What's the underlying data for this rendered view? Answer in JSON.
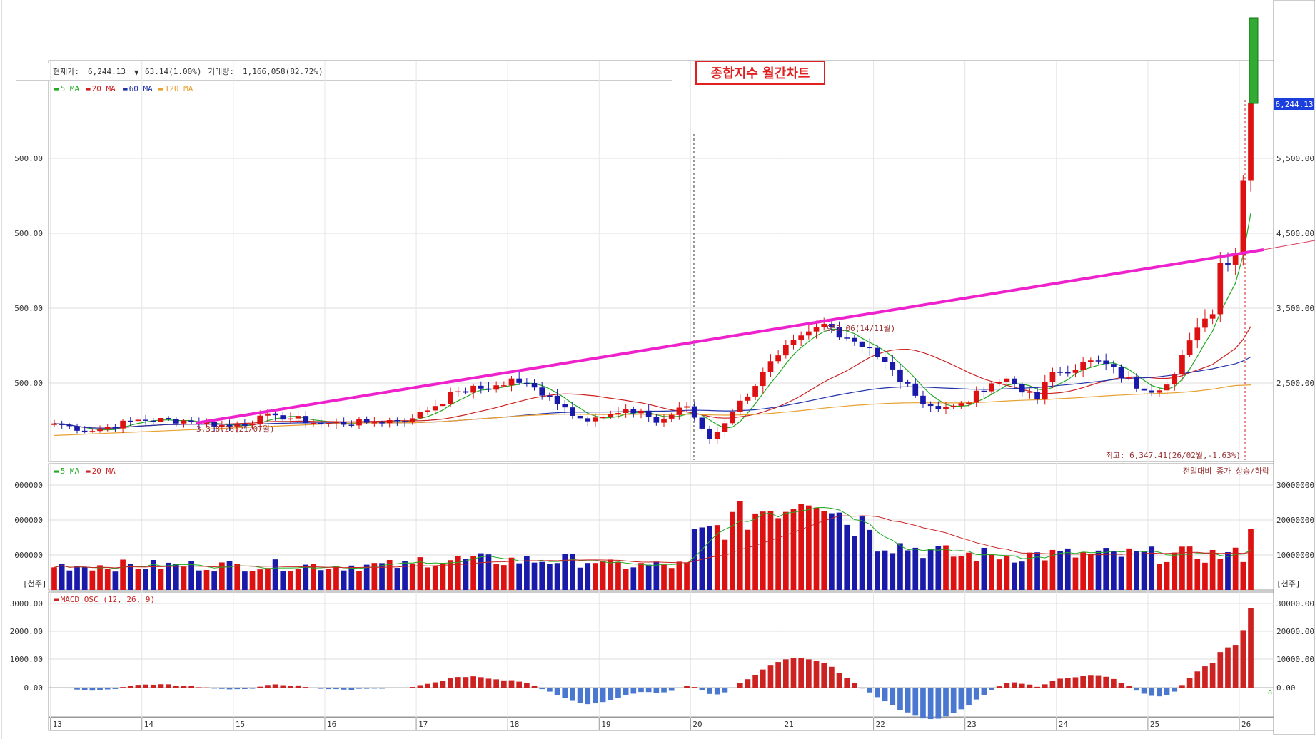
{
  "info_bar": {
    "price_label": "현재가:",
    "price": "6,244.13",
    "change": "63.14(1.00%)",
    "change_arrow": "▼",
    "volume_label": "거래량:",
    "volume": "1,166,058(82.72%)"
  },
  "title_box": {
    "text": "종합지수 월간차트",
    "color": "#e02020"
  },
  "price_panel": {
    "legend": [
      {
        "label": "5 MA",
        "color": "#22aa22"
      },
      {
        "label": "20 MA",
        "color": "#cc2222"
      },
      {
        "label": "60 MA",
        "color": "#2233aa"
      },
      {
        "label": "120 MA",
        "color": "#e8a030"
      }
    ],
    "left_ticks": [
      "500.00",
      "500.00",
      "500.00",
      "500.00"
    ],
    "right_ticks": [
      "5,500.00",
      "4,500.00",
      "3,500.00",
      "2,500.00"
    ],
    "current_price_tag": "6,244.13",
    "annotation_low": "3,318.26(21/07월)",
    "annotation_peak": "957.06(14/11월)",
    "annotation_high": "최고: 6,347.41(26/02월,-1.63%)"
  },
  "volume_panel": {
    "legend": [
      {
        "label": "5 MA",
        "color": "#22aa22"
      },
      {
        "label": "20 MA",
        "color": "#cc2222"
      }
    ],
    "right_caption": "전일대비 종가 상승/하락",
    "left_ticks": [
      "000000",
      "000000",
      "000000"
    ],
    "right_ticks": [
      "30000000",
      "20000000",
      "10000000"
    ],
    "unit_left": "[천주]",
    "unit_right": "[천주]"
  },
  "macd_panel": {
    "legend": {
      "label": "MACD OSC (12, 26, 9)",
      "color": "#cc2222"
    },
    "left_ticks": [
      "3000.00",
      "2000.00",
      "1000.00",
      "0.00"
    ],
    "right_ticks": [
      "30000.00",
      "20000.00",
      "10000.00",
      "0.00"
    ],
    "right_zero_marker": "0"
  },
  "x_axis": {
    "labels": [
      "13",
      "14",
      "15",
      "16",
      "17",
      "18",
      "19",
      "20",
      "21",
      "22",
      "23",
      "24",
      "25",
      "26"
    ]
  },
  "colors": {
    "up": "#dd1111",
    "down": "#1a1aaa",
    "trendline": "#ee22cc",
    "macd_neg": "#4a78d0",
    "macd_pos": "#cc2222"
  },
  "chart_data": {
    "type": "candlestick",
    "title": "종합지수 월간차트",
    "x_axis": "year (20xx, monthly bars)",
    "y_range_price_axis": [
      1900,
      6600
    ],
    "price_ticks": [
      2500,
      3500,
      4500,
      5500
    ],
    "current_price": 6244.13,
    "notable_points": [
      {
        "label": "3,318.26(21/07월)"
      },
      {
        "label": "957.06(14/11월)"
      },
      {
        "label": "최고: 6,347.41(26/02월,-1.63%)"
      }
    ],
    "trendline": {
      "from": [
        "2014-07",
        2000
      ],
      "to": [
        "2026-03",
        4000
      ]
    },
    "monthly_close_keypoints": [
      [
        "2013-01",
        1960
      ],
      [
        "2013-06",
        1860
      ],
      [
        "2013-12",
        2010
      ],
      [
        "2014-06",
        2000
      ],
      [
        "2014-12",
        1920
      ],
      [
        "2015-06",
        2070
      ],
      [
        "2015-12",
        1960
      ],
      [
        "2016-06",
        1970
      ],
      [
        "2016-12",
        2030
      ],
      [
        "2017-06",
        2390
      ],
      [
        "2017-12",
        2470
      ],
      [
        "2018-01",
        2560
      ],
      [
        "2018-06",
        2330
      ],
      [
        "2018-10",
        2030
      ],
      [
        "2018-12",
        2040
      ],
      [
        "2019-06",
        2130
      ],
      [
        "2019-08",
        1970
      ],
      [
        "2019-12",
        2190
      ],
      [
        "2020-03",
        1750
      ],
      [
        "2020-06",
        2110
      ],
      [
        "2020-12",
        2870
      ],
      [
        "2021-06",
        3290
      ],
      [
        "2021-12",
        2970
      ],
      [
        "2022-06",
        2330
      ],
      [
        "2022-09",
        2150
      ],
      [
        "2022-12",
        2230
      ],
      [
        "2023-06",
        2560
      ],
      [
        "2023-10",
        2280
      ],
      [
        "2023-12",
        2650
      ],
      [
        "2024-06",
        2800
      ],
      [
        "2024-12",
        2400
      ],
      [
        "2025-03",
        2480
      ],
      [
        "2025-06",
        3070
      ],
      [
        "2025-09",
        3420
      ],
      [
        "2025-10",
        4100
      ],
      [
        "2025-12",
        4210
      ],
      [
        "2026-01",
        5200
      ],
      [
        "2026-02",
        6244
      ]
    ],
    "volume_ticks": [
      10000000,
      20000000,
      30000000
    ],
    "macd_osc_ticks": [
      0,
      10000,
      20000,
      30000
    ]
  }
}
